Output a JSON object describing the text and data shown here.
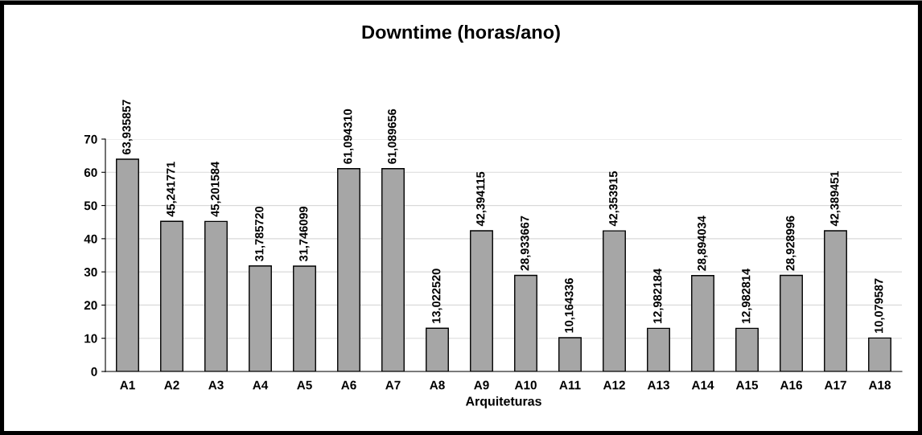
{
  "chart_data": {
    "type": "bar",
    "title": "Downtime (horas/ano)",
    "xlabel": "Arquiteturas",
    "categories": [
      "A1",
      "A2",
      "A3",
      "A4",
      "A5",
      "A6",
      "A7",
      "A8",
      "A9",
      "A10",
      "A11",
      "A12",
      "A13",
      "A14",
      "A15",
      "A16",
      "A17",
      "A18"
    ],
    "values": [
      63.935857,
      45.241771,
      45.201584,
      31.78572,
      31.746099,
      61.09431,
      61.089656,
      13.02252,
      42.394115,
      28.933667,
      10.164336,
      42.353915,
      12.982184,
      28.894034,
      12.982814,
      28.928996,
      42.389451,
      10.079587
    ],
    "value_labels": [
      "63,935857",
      "45,241771",
      "45,201584",
      "31,785720",
      "31,746099",
      "61,094310",
      "61,089656",
      "13,022520",
      "42,394115",
      "28,933667",
      "10,164336",
      "42,353915",
      "12,982184",
      "28,894034",
      "12,982814",
      "28,928996",
      "42,389451",
      "10,079587"
    ],
    "color": "#a6a6a6",
    "ylim": [
      0,
      70
    ],
    "yticks": [
      0,
      10,
      20,
      30,
      40,
      50,
      60,
      70
    ],
    "grid": "y",
    "legend": false
  }
}
